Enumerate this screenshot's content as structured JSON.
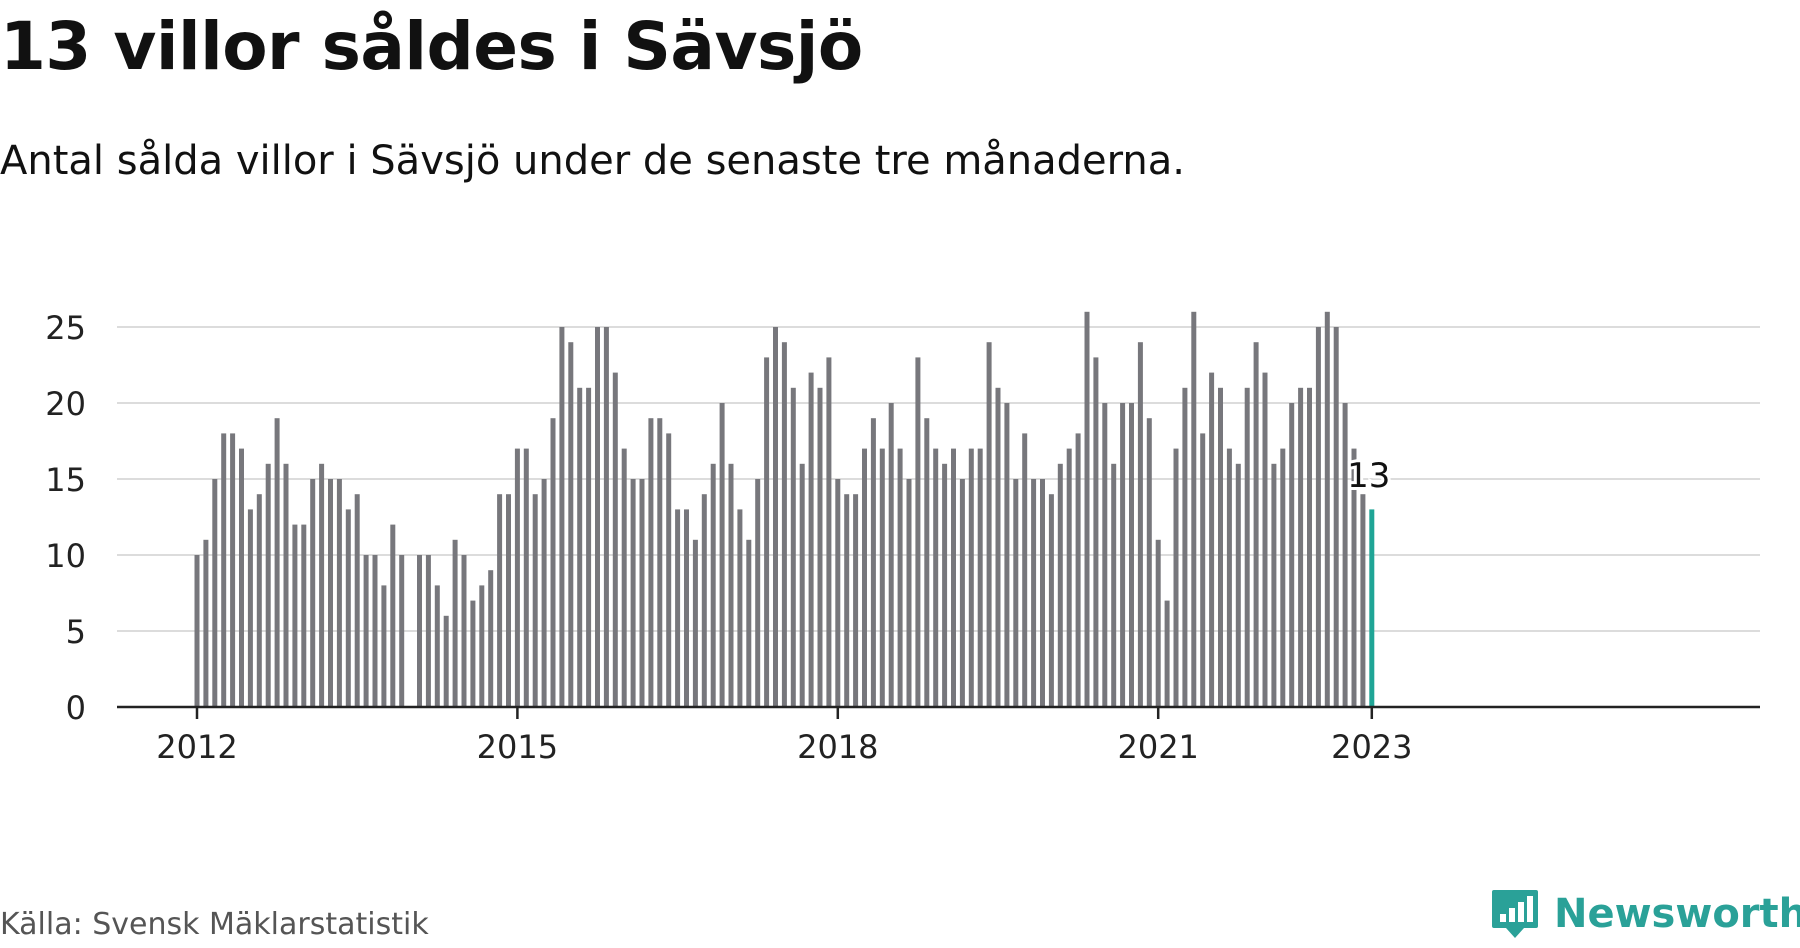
{
  "header": {
    "title": "13 villor såldes i Sävsjö",
    "subtitle": "Antal sålda villor i Sävsjö under de senaste tre månaderna."
  },
  "footer": {
    "source": "Källa: Svensk Mäklarstatistik",
    "brand": "Newsworthy"
  },
  "colors": {
    "bar": "#77777c",
    "highlight": "#1fa596",
    "grid": "#dcdcdc",
    "axis": "#222222",
    "brand": "#2aa198"
  },
  "chart_data": {
    "type": "bar",
    "x_start": "2012-01",
    "x_end": "2023-01",
    "values": [
      10,
      11,
      15,
      18,
      18,
      17,
      13,
      14,
      16,
      19,
      16,
      12,
      12,
      15,
      16,
      15,
      15,
      13,
      14,
      10,
      10,
      8,
      12,
      10,
      null,
      10,
      10,
      8,
      6,
      11,
      10,
      7,
      8,
      9,
      14,
      14,
      17,
      17,
      14,
      15,
      19,
      25,
      24,
      21,
      21,
      25,
      25,
      22,
      17,
      15,
      15,
      19,
      19,
      18,
      13,
      13,
      11,
      14,
      16,
      20,
      16,
      13,
      11,
      15,
      23,
      25,
      24,
      21,
      16,
      22,
      21,
      23,
      15,
      14,
      14,
      17,
      19,
      17,
      20,
      17,
      15,
      23,
      19,
      17,
      16,
      17,
      15,
      17,
      17,
      24,
      21,
      20,
      15,
      18,
      15,
      15,
      14,
      16,
      17,
      18,
      26,
      23,
      20,
      16,
      20,
      20,
      24,
      19,
      11,
      7,
      17,
      21,
      26,
      18,
      22,
      21,
      17,
      16,
      21,
      24,
      22,
      16,
      17,
      20,
      21,
      21,
      25,
      26,
      25,
      20,
      17,
      14,
      13
    ],
    "highlight_last": true,
    "annotation": "13",
    "y_ticks": [
      0,
      5,
      10,
      15,
      20,
      25
    ],
    "x_ticks": [
      "2012",
      "2015",
      "2018",
      "2021",
      "2023"
    ],
    "ylim": [
      0,
      27
    ],
    "grid": true,
    "xlabel": "",
    "ylabel": ""
  }
}
